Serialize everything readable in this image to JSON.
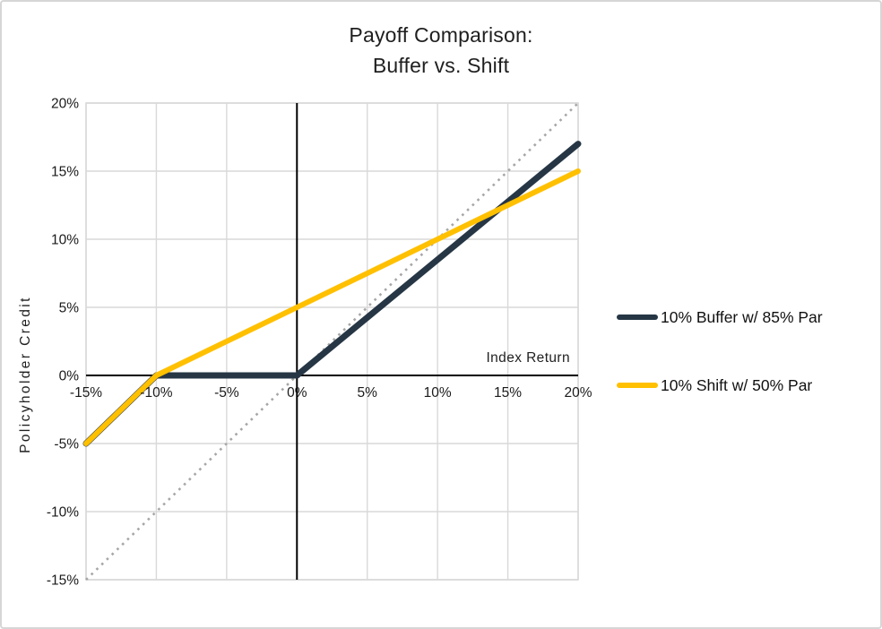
{
  "title": {
    "line1": "Payoff Comparison:",
    "line2": "Buffer vs. Shift"
  },
  "axes": {
    "x_title": "Index Return",
    "y_title": "Policyholder Credit"
  },
  "colors": {
    "buffer_series": "#263645",
    "shift_series": "#FFC000",
    "reference_dotted": "#a6a6a6",
    "gridline": "#d9d9d9",
    "axis_line": "#000000",
    "frame_border": "#d6d6d6",
    "text": "#1a1a1a"
  },
  "chart_data": {
    "type": "line",
    "title": "Payoff Comparison: Buffer vs. Shift",
    "xlabel": "Index Return",
    "ylabel": "Policyholder Credit",
    "xlim": [
      -15,
      20
    ],
    "ylim": [
      -15,
      20
    ],
    "x_ticks": [
      -15,
      -10,
      -5,
      0,
      5,
      10,
      15,
      20
    ],
    "x_tick_labels": [
      "-15%",
      "-10%",
      "-5%",
      "0%",
      "5%",
      "10%",
      "15%",
      "20%"
    ],
    "y_ticks": [
      20,
      15,
      10,
      5,
      0,
      -5,
      -10,
      -15
    ],
    "y_tick_labels": [
      "20%",
      "15%",
      "10%",
      "5%",
      "0%",
      "-5%",
      "-10%",
      "-15%"
    ],
    "grid": true,
    "legend_position": "right",
    "series": [
      {
        "name": "10% Buffer w/ 85% Par",
        "color": "#263645",
        "stroke_width": 7,
        "points": [
          [
            -15,
            -5
          ],
          [
            -10,
            0
          ],
          [
            0,
            0
          ],
          [
            20,
            17
          ]
        ]
      },
      {
        "name": "10% Shift w/ 50% Par",
        "color": "#FFC000",
        "stroke_width": 6,
        "points": [
          [
            -15,
            -5
          ],
          [
            -10,
            0
          ],
          [
            20,
            15
          ]
        ]
      }
    ],
    "reference_line": {
      "name": "index-return-identity",
      "style": "dotted",
      "color": "#a6a6a6",
      "points": [
        [
          -15,
          -15
        ],
        [
          20,
          20
        ]
      ]
    }
  }
}
